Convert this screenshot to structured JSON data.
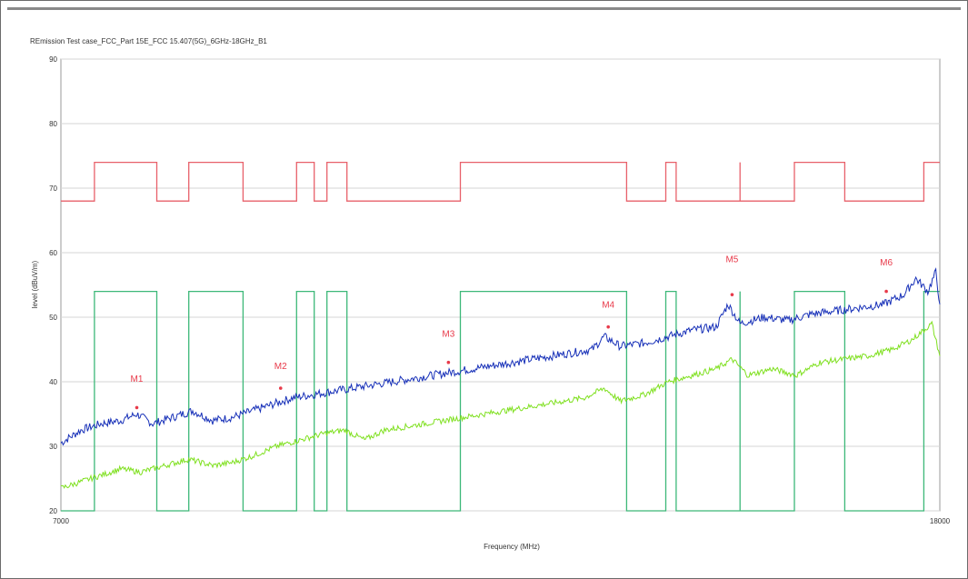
{
  "chart_data": {
    "type": "line",
    "title": "REmission Test case_FCC_Part 15E_FCC 15.407(5G)_6GHz-18GHz_B1",
    "xlabel": "Frequency (MHz)",
    "ylabel": "level (dBuV/m)",
    "xlim": [
      7000,
      18000
    ],
    "ylim": [
      20,
      90
    ],
    "x_tick_labels": [
      "7000",
      "18000"
    ],
    "y_ticks": [
      20,
      30,
      40,
      50,
      60,
      70,
      80,
      90
    ],
    "grid": true,
    "limit_lines": [
      {
        "color": "#e8606a",
        "points": [
          [
            7000,
            68
          ],
          [
            7420,
            68
          ],
          [
            7420,
            74
          ],
          [
            8200,
            74
          ],
          [
            8200,
            68
          ],
          [
            8600,
            68
          ],
          [
            8600,
            74
          ],
          [
            9280,
            74
          ],
          [
            9280,
            68
          ],
          [
            9950,
            68
          ],
          [
            9950,
            74
          ],
          [
            10170,
            74
          ],
          [
            10170,
            68
          ],
          [
            10330,
            68
          ],
          [
            10330,
            74
          ],
          [
            10580,
            74
          ],
          [
            10580,
            68
          ],
          [
            12000,
            68
          ],
          [
            12000,
            74
          ],
          [
            14080,
            74
          ],
          [
            14080,
            68
          ],
          [
            14570,
            68
          ],
          [
            14570,
            74
          ],
          [
            14700,
            74
          ],
          [
            14700,
            68
          ],
          [
            15500,
            68
          ],
          [
            15500,
            74
          ],
          [
            15500,
            68
          ],
          [
            16180,
            68
          ],
          [
            16180,
            74
          ],
          [
            16810,
            74
          ],
          [
            16810,
            68
          ],
          [
            17800,
            68
          ],
          [
            17800,
            74
          ],
          [
            18000,
            74
          ]
        ]
      },
      {
        "color": "#3cb878",
        "points": [
          [
            7000,
            20
          ],
          [
            7420,
            20
          ],
          [
            7420,
            54
          ],
          [
            8200,
            54
          ],
          [
            8200,
            20
          ],
          [
            8600,
            20
          ],
          [
            8600,
            54
          ],
          [
            9280,
            54
          ],
          [
            9280,
            20
          ],
          [
            9950,
            20
          ],
          [
            9950,
            54
          ],
          [
            10170,
            54
          ],
          [
            10170,
            20
          ],
          [
            10330,
            20
          ],
          [
            10330,
            54
          ],
          [
            10580,
            54
          ],
          [
            10580,
            20
          ],
          [
            12000,
            20
          ],
          [
            12000,
            54
          ],
          [
            14080,
            54
          ],
          [
            14080,
            20
          ],
          [
            14570,
            20
          ],
          [
            14570,
            54
          ],
          [
            14700,
            54
          ],
          [
            14700,
            20
          ],
          [
            15500,
            20
          ],
          [
            15500,
            54
          ],
          [
            15500,
            20
          ],
          [
            16180,
            20
          ],
          [
            16180,
            54
          ],
          [
            16810,
            54
          ],
          [
            16810,
            20
          ],
          [
            17800,
            20
          ],
          [
            17800,
            54
          ],
          [
            18000,
            54
          ]
        ]
      }
    ],
    "series": [
      {
        "color": "#1730b8",
        "values": [
          [
            7000,
            30.5
          ],
          [
            7250,
            32.5
          ],
          [
            7500,
            33.5
          ],
          [
            7750,
            34
          ],
          [
            7950,
            35
          ],
          [
            8150,
            33.5
          ],
          [
            8400,
            34.5
          ],
          [
            8650,
            35.5
          ],
          [
            8900,
            34
          ],
          [
            9150,
            34.5
          ],
          [
            9400,
            35.5
          ],
          [
            9650,
            36.5
          ],
          [
            9900,
            37.5
          ],
          [
            10150,
            38
          ],
          [
            10400,
            38.5
          ],
          [
            10650,
            39
          ],
          [
            10900,
            39.5
          ],
          [
            11150,
            40
          ],
          [
            11400,
            40.5
          ],
          [
            11650,
            41
          ],
          [
            11900,
            41.5
          ],
          [
            12150,
            42
          ],
          [
            12400,
            42.5
          ],
          [
            12650,
            43
          ],
          [
            12900,
            43.5
          ],
          [
            13150,
            44
          ],
          [
            13400,
            44.5
          ],
          [
            13650,
            45
          ],
          [
            13800,
            47
          ],
          [
            14000,
            45.5
          ],
          [
            14300,
            46
          ],
          [
            14600,
            47
          ],
          [
            14900,
            48
          ],
          [
            15200,
            48.5
          ],
          [
            15350,
            52
          ],
          [
            15500,
            49
          ],
          [
            15800,
            50
          ],
          [
            16100,
            49.5
          ],
          [
            16400,
            50.5
          ],
          [
            16700,
            51
          ],
          [
            17000,
            51.5
          ],
          [
            17300,
            52
          ],
          [
            17550,
            53.5
          ],
          [
            17700,
            56
          ],
          [
            17850,
            54
          ],
          [
            17950,
            57
          ],
          [
            18000,
            52
          ]
        ]
      },
      {
        "color": "#7fe01f",
        "values": [
          [
            7000,
            23.5
          ],
          [
            7250,
            24.5
          ],
          [
            7500,
            25.5
          ],
          [
            7750,
            26.5
          ],
          [
            8000,
            26
          ],
          [
            8300,
            27
          ],
          [
            8600,
            28
          ],
          [
            8900,
            27
          ],
          [
            9150,
            27.5
          ],
          [
            9400,
            28.5
          ],
          [
            9700,
            30
          ],
          [
            10000,
            31
          ],
          [
            10300,
            32
          ],
          [
            10550,
            32.5
          ],
          [
            10800,
            31
          ],
          [
            11050,
            32.5
          ],
          [
            11300,
            33
          ],
          [
            11550,
            33.5
          ],
          [
            11800,
            34
          ],
          [
            12050,
            34.5
          ],
          [
            12300,
            35
          ],
          [
            12550,
            35.5
          ],
          [
            12800,
            36
          ],
          [
            13050,
            36.5
          ],
          [
            13300,
            37
          ],
          [
            13550,
            37.5
          ],
          [
            13800,
            39
          ],
          [
            14000,
            37
          ],
          [
            14300,
            38
          ],
          [
            14600,
            40
          ],
          [
            14900,
            41
          ],
          [
            15200,
            42
          ],
          [
            15400,
            43.5
          ],
          [
            15600,
            41
          ],
          [
            15900,
            42
          ],
          [
            16200,
            41
          ],
          [
            16500,
            43
          ],
          [
            16800,
            43.5
          ],
          [
            17100,
            44
          ],
          [
            17400,
            45
          ],
          [
            17650,
            46.5
          ],
          [
            17900,
            49
          ],
          [
            18000,
            44
          ]
        ]
      }
    ],
    "markers": [
      {
        "label": "M1",
        "x": 7950,
        "y": 36
      },
      {
        "label": "M2",
        "x": 9750,
        "y": 39
      },
      {
        "label": "M3",
        "x": 11850,
        "y": 43
      },
      {
        "label": "M4",
        "x": 13850,
        "y": 48.5
      },
      {
        "label": "M5",
        "x": 15400,
        "y": 53.5
      },
      {
        "label": "M6",
        "x": 17330,
        "y": 54
      }
    ],
    "marker_label_offsets": {
      "M1": [
        4,
        -4
      ],
      "M2": [
        3,
        -3
      ],
      "M3": [
        2,
        -4
      ],
      "M4": [
        2,
        -3
      ],
      "M5": [
        -4,
        -5
      ],
      "M6": [
        4,
        -4
      ]
    }
  }
}
